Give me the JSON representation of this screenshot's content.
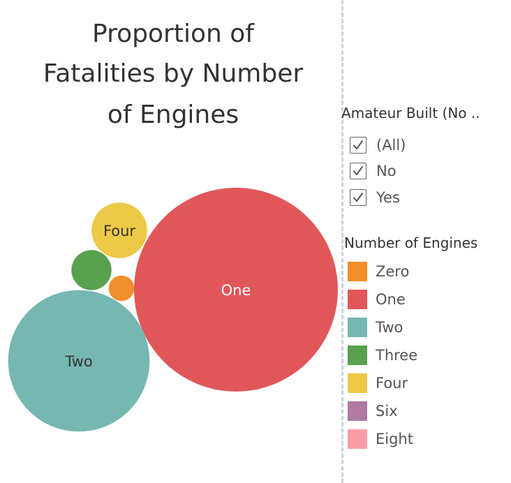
{
  "chart_data": {
    "type": "packed-bubble",
    "title": "Proportion of Fatalities by Number of Engines",
    "items": [
      {
        "category": "One",
        "relative_size": 1.0,
        "color": "#e15759",
        "label": "One",
        "label_color": "#ffffff"
      },
      {
        "category": "Two",
        "relative_size": 0.481,
        "color": "#76b7b2",
        "label": "Two",
        "label_color": "#333333"
      },
      {
        "category": "Four",
        "relative_size": 0.0743,
        "color": "#edc948",
        "label": "Four",
        "label_color": "#333333"
      },
      {
        "category": "Three",
        "relative_size": 0.0387,
        "color": "#59a14f",
        "label": "",
        "label_color": "#333333"
      },
      {
        "category": "Zero",
        "relative_size": 0.0157,
        "color": "#f28e2b",
        "label": "",
        "label_color": "#333333"
      }
    ]
  },
  "filter": {
    "title": "Amateur Built (No ..",
    "items": [
      {
        "label": "(All)",
        "checked": true
      },
      {
        "label": "No",
        "checked": true
      },
      {
        "label": "Yes",
        "checked": true
      }
    ]
  },
  "legend": {
    "title": "Number of Engines",
    "items": [
      {
        "label": "Zero",
        "color": "#f28e2b"
      },
      {
        "label": "One",
        "color": "#e15759"
      },
      {
        "label": "Two",
        "color": "#76b7b2"
      },
      {
        "label": "Three",
        "color": "#59a14f"
      },
      {
        "label": "Four",
        "color": "#edc948"
      },
      {
        "label": "Six",
        "color": "#b07aa1"
      },
      {
        "label": "Eight",
        "color": "#ff9da7"
      }
    ]
  }
}
